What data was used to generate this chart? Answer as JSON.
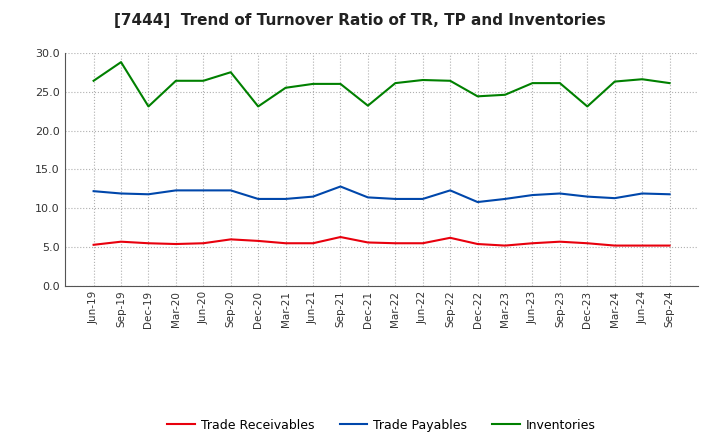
{
  "title": "[7444]  Trend of Turnover Ratio of TR, TP and Inventories",
  "x_labels": [
    "Jun-19",
    "Sep-19",
    "Dec-19",
    "Mar-20",
    "Jun-20",
    "Sep-20",
    "Dec-20",
    "Mar-21",
    "Jun-21",
    "Sep-21",
    "Dec-21",
    "Mar-22",
    "Jun-22",
    "Sep-22",
    "Dec-22",
    "Mar-23",
    "Jun-23",
    "Sep-23",
    "Dec-23",
    "Mar-24",
    "Jun-24",
    "Sep-24"
  ],
  "trade_receivables": [
    5.3,
    5.7,
    5.5,
    5.4,
    5.5,
    6.0,
    5.8,
    5.5,
    5.5,
    6.3,
    5.6,
    5.5,
    5.5,
    6.2,
    5.4,
    5.2,
    5.5,
    5.7,
    5.5,
    5.2,
    5.2,
    5.2
  ],
  "trade_payables": [
    12.2,
    11.9,
    11.8,
    12.3,
    12.3,
    12.3,
    11.2,
    11.2,
    11.5,
    12.8,
    11.4,
    11.2,
    11.2,
    12.3,
    10.8,
    11.2,
    11.7,
    11.9,
    11.5,
    11.3,
    11.9,
    11.8
  ],
  "inventories": [
    26.4,
    28.8,
    23.1,
    26.4,
    26.4,
    27.5,
    23.1,
    25.5,
    26.0,
    26.0,
    23.2,
    26.1,
    26.5,
    26.4,
    24.4,
    24.6,
    26.1,
    26.1,
    23.1,
    26.3,
    26.6,
    26.1
  ],
  "tr_color": "#e8000d",
  "tp_color": "#0047ab",
  "inv_color": "#008000",
  "ylim": [
    0.0,
    30.0
  ],
  "yticks": [
    0.0,
    5.0,
    10.0,
    15.0,
    20.0,
    25.0,
    30.0
  ],
  "legend_labels": [
    "Trade Receivables",
    "Trade Payables",
    "Inventories"
  ],
  "bg_color": "#ffffff",
  "grid_color": "#b0b0b0"
}
